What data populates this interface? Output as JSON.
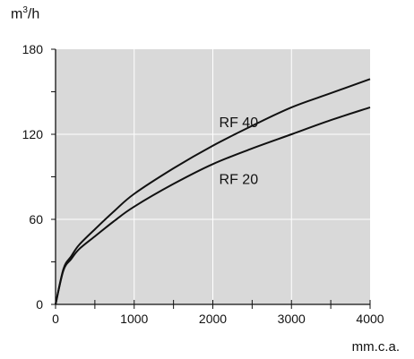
{
  "chart_data": {
    "type": "line",
    "title": "",
    "ylabel_base": "m",
    "ylabel_sup": "3",
    "ylabel_rest": "/h",
    "xlabel": "mm.c.a.",
    "xlim": [
      0,
      4000
    ],
    "ylim": [
      0,
      180
    ],
    "x_ticks": [
      0,
      1000,
      2000,
      3000,
      4000
    ],
    "x_minor_step": 500,
    "y_ticks": [
      0,
      60,
      120,
      180
    ],
    "y_minor_step": 30,
    "grid": true,
    "plot_background": "#d9d9d9",
    "grid_color": "#ffffff",
    "line_color": "#111111",
    "series": [
      {
        "name": "RF 40",
        "x": [
          0,
          100,
          200,
          300,
          500,
          750,
          1000,
          1500,
          2000,
          2500,
          3000,
          3500,
          4000
        ],
        "y": [
          0,
          25,
          34,
          42,
          53,
          66,
          78,
          96,
          112,
          126,
          139,
          149,
          159
        ]
      },
      {
        "name": "RF 20",
        "x": [
          0,
          100,
          200,
          300,
          500,
          750,
          1000,
          1500,
          2000,
          2500,
          3000,
          3500,
          4000
        ],
        "y": [
          0,
          24,
          32,
          39,
          48,
          59,
          69,
          85,
          99,
          110,
          120,
          130,
          139
        ]
      }
    ],
    "annotations": [
      {
        "text": "RF 40",
        "series": "RF 40"
      },
      {
        "text": "RF 20",
        "series": "RF 20"
      }
    ]
  }
}
